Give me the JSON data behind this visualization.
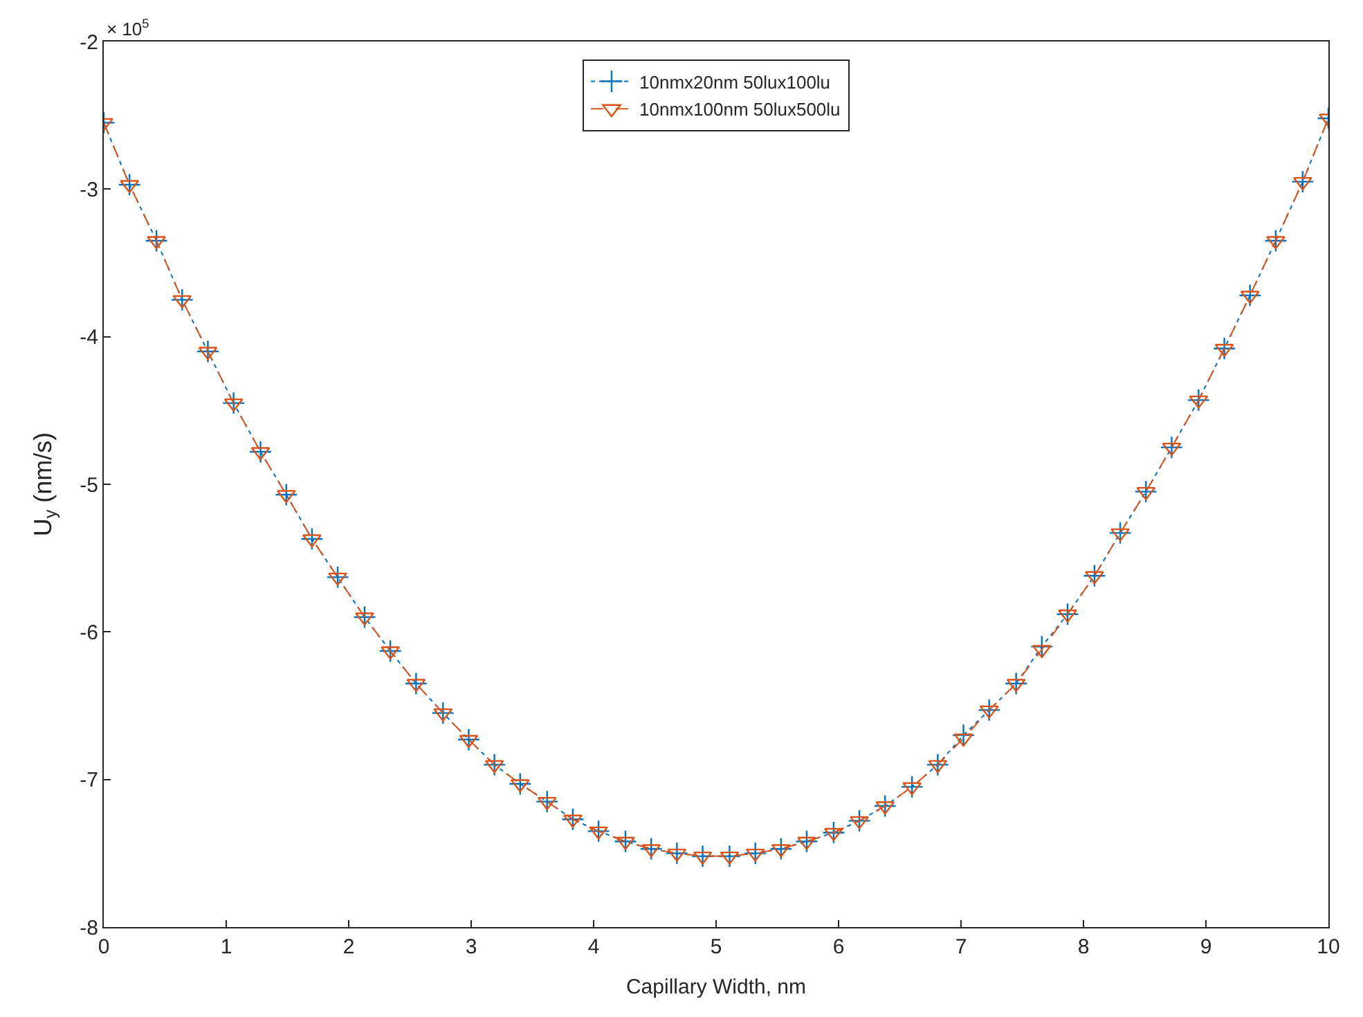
{
  "chart_data": {
    "type": "line",
    "xlabel": "Capillary Width, nm",
    "ylabel": "U$_{y}$ (nm/s)",
    "x": [
      0,
      0.21,
      0.43,
      0.64,
      0.85,
      1.06,
      1.28,
      1.49,
      1.7,
      1.91,
      2.13,
      2.34,
      2.55,
      2.77,
      2.98,
      3.19,
      3.4,
      3.62,
      3.83,
      4.04,
      4.26,
      4.47,
      4.68,
      4.89,
      5.11,
      5.32,
      5.53,
      5.74,
      5.96,
      6.17,
      6.38,
      6.6,
      6.81,
      7.02,
      7.23,
      7.45,
      7.66,
      7.87,
      8.09,
      8.3,
      8.51,
      8.72,
      8.94,
      9.15,
      9.36,
      9.57,
      9.79,
      10
    ],
    "series": [
      {
        "name": "10nmx20nm 50lux100lu",
        "color": "#0072bd",
        "marker": "cross",
        "line_style": "dotted",
        "values": [
          -2.55,
          -2.97,
          -3.35,
          -3.75,
          -4.1,
          -4.45,
          -4.78,
          -5.07,
          -5.37,
          -5.63,
          -5.9,
          -6.13,
          -6.35,
          -6.55,
          -6.73,
          -6.9,
          -7.03,
          -7.15,
          -7.27,
          -7.35,
          -7.42,
          -7.47,
          -7.5,
          -7.52,
          -7.52,
          -7.5,
          -7.47,
          -7.42,
          -7.36,
          -7.28,
          -7.18,
          -7.05,
          -6.9,
          -6.7,
          -6.53,
          -6.35,
          -6.1,
          -5.88,
          -5.62,
          -5.33,
          -5.05,
          -4.75,
          -4.43,
          -4.08,
          -3.72,
          -3.35,
          -2.95,
          -2.52
        ]
      },
      {
        "name": "10nmx100nm 50lux500lu",
        "color": "#d95319",
        "marker": "triangle",
        "line_style": "dashed",
        "values": [
          -2.55,
          -2.97,
          -3.35,
          -3.75,
          -4.1,
          -4.45,
          -4.78,
          -5.07,
          -5.37,
          -5.63,
          -5.9,
          -6.13,
          -6.35,
          -6.55,
          -6.73,
          -6.9,
          -7.03,
          -7.15,
          -7.27,
          -7.35,
          -7.42,
          -7.47,
          -7.5,
          -7.52,
          -7.52,
          -7.5,
          -7.47,
          -7.42,
          -7.36,
          -7.28,
          -7.18,
          -7.05,
          -6.9,
          -6.72,
          -6.53,
          -6.35,
          -6.12,
          -5.88,
          -5.62,
          -5.33,
          -5.05,
          -4.75,
          -4.43,
          -4.08,
          -3.72,
          -3.35,
          -2.95,
          -2.52
        ]
      }
    ],
    "xlim": [
      0,
      10
    ],
    "xticks": [
      0,
      1,
      2,
      3,
      4,
      5,
      6,
      7,
      8,
      9,
      10
    ],
    "ylim": [
      -8,
      -2
    ],
    "yticks": [
      -8,
      -7,
      -6,
      -5,
      -4,
      -3,
      -2
    ],
    "annotations": [
      "× 10$^{5}$"
    ],
    "legend": "top"
  }
}
